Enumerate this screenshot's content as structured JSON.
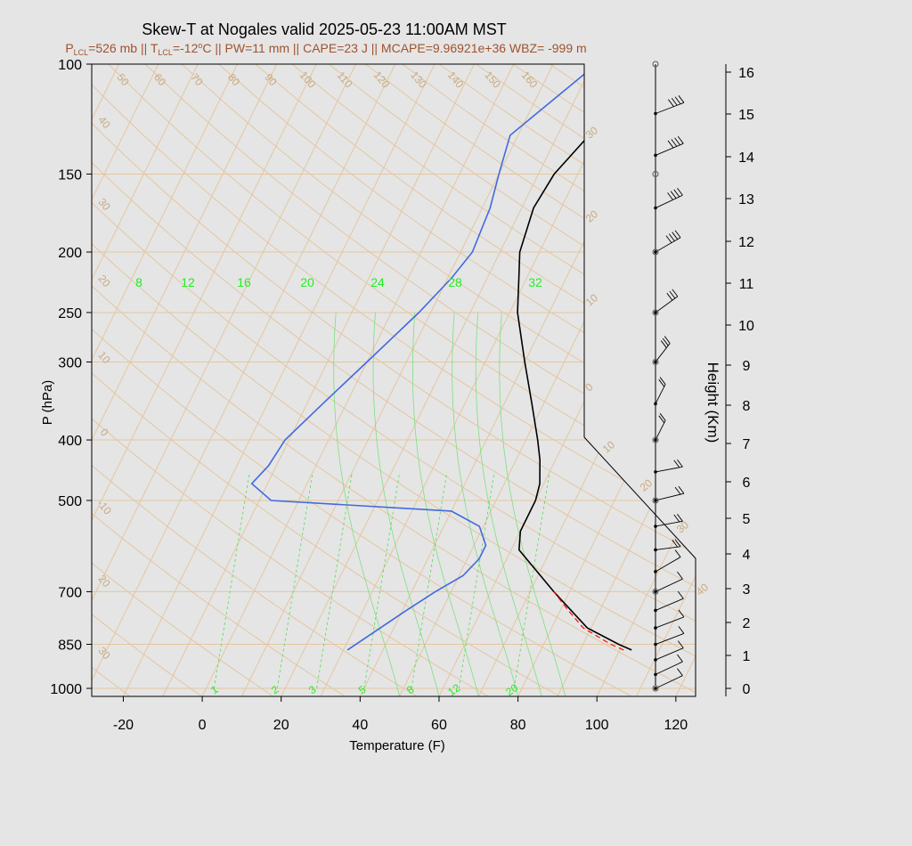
{
  "title": "Skew-T at Nogales valid 2025-05-23 11:00AM MST",
  "subtitle_parts": {
    "p_lcl": "526 mb",
    "t_lcl": "-12",
    "pw": "PW=11 mm",
    "cape": "CAPE=23 J",
    "mcape": "MCAPE=9.96921e+36",
    "wbz": "WBZ= -999 m"
  },
  "chart_data": {
    "type": "line",
    "xlabel": "Temperature (F)",
    "ylabel": "P (hPa)",
    "y2label": "Height (Km)",
    "xlim": [
      -28,
      125
    ],
    "ylim": [
      1030,
      100
    ],
    "x_ticks": [
      -20,
      0,
      20,
      40,
      60,
      80,
      100,
      120
    ],
    "y_ticks": [
      100,
      150,
      200,
      250,
      300,
      400,
      500,
      700,
      850,
      1000
    ],
    "height_ticks_km": [
      0,
      1,
      2,
      3,
      4,
      5,
      6,
      7,
      8,
      9,
      10,
      11,
      12,
      13,
      14,
      15,
      16
    ],
    "mixing_ratio_labels_top": [
      "8",
      "12",
      "16",
      "20",
      "24",
      "28",
      "32"
    ],
    "mixing_ratio_labels_bottom": [
      "1",
      "2",
      "3",
      "5",
      "8",
      "12",
      "20"
    ],
    "isotherm_labels_left": [
      "40",
      "30",
      "20",
      "10",
      "0",
      "-10",
      "20",
      "30"
    ],
    "isotherm_labels_top": [
      "50",
      "60",
      "70",
      "80",
      "90",
      "100",
      "110",
      "120",
      "130",
      "140",
      "150",
      "160"
    ],
    "isotherm_labels_right": [
      "30",
      "20",
      "10",
      "0",
      "10",
      "20",
      "30",
      "40"
    ],
    "series": [
      {
        "role": "temperature",
        "color": "#000000",
        "points": [
          {
            "p": 868,
            "t": 103
          },
          {
            "p": 850,
            "t": 99
          },
          {
            "p": 800,
            "t": 89
          },
          {
            "p": 700,
            "t": 76
          },
          {
            "p": 600,
            "t": 62
          },
          {
            "p": 560,
            "t": 60
          },
          {
            "p": 500,
            "t": 60
          },
          {
            "p": 470,
            "t": 59
          },
          {
            "p": 430,
            "t": 56
          },
          {
            "p": 400,
            "t": 53
          },
          {
            "p": 350,
            "t": 47
          },
          {
            "p": 300,
            "t": 40
          },
          {
            "p": 250,
            "t": 32
          },
          {
            "p": 220,
            "t": 28
          },
          {
            "p": 200,
            "t": 25
          },
          {
            "p": 170,
            "t": 23
          },
          {
            "p": 150,
            "t": 24
          },
          {
            "p": 130,
            "t": 28
          },
          {
            "p": 115,
            "t": 33
          },
          {
            "p": 100,
            "t": 40
          }
        ]
      },
      {
        "role": "dewpoint",
        "color": "#4169e1",
        "points": [
          {
            "p": 868,
            "t": 31
          },
          {
            "p": 750,
            "t": 41
          },
          {
            "p": 700,
            "t": 46
          },
          {
            "p": 660,
            "t": 51
          },
          {
            "p": 620,
            "t": 53
          },
          {
            "p": 590,
            "t": 53
          },
          {
            "p": 550,
            "t": 49
          },
          {
            "p": 520,
            "t": 40
          },
          {
            "p": 500,
            "t": -7
          },
          {
            "p": 470,
            "t": -14
          },
          {
            "p": 440,
            "t": -12
          },
          {
            "p": 400,
            "t": -11
          },
          {
            "p": 350,
            "t": -6
          },
          {
            "p": 300,
            "t": 0
          },
          {
            "p": 250,
            "t": 7
          },
          {
            "p": 220,
            "t": 11
          },
          {
            "p": 200,
            "t": 13
          },
          {
            "p": 170,
            "t": 12
          },
          {
            "p": 150,
            "t": 10
          },
          {
            "p": 130,
            "t": 8
          },
          {
            "p": 100,
            "t": 21
          }
        ]
      },
      {
        "role": "parcel",
        "color": "#ff0000",
        "dashed": true,
        "points": [
          {
            "p": 868,
            "t": 101
          },
          {
            "p": 850,
            "t": 97
          },
          {
            "p": 800,
            "t": 88
          },
          {
            "p": 750,
            "t": 82
          },
          {
            "p": 700,
            "t": 76
          }
        ]
      }
    ],
    "wind_barbs": [
      {
        "p": 1000,
        "dir": 250,
        "speed_kt": 5
      },
      {
        "p": 950,
        "dir": 250,
        "speed_kt": 10
      },
      {
        "p": 900,
        "dir": 255,
        "speed_kt": 10
      },
      {
        "p": 850,
        "dir": 260,
        "speed_kt": 10
      },
      {
        "p": 800,
        "dir": 260,
        "speed_kt": 10
      },
      {
        "p": 750,
        "dir": 255,
        "speed_kt": 10
      },
      {
        "p": 700,
        "dir": 250,
        "speed_kt": 10
      },
      {
        "p": 650,
        "dir": 240,
        "speed_kt": 10
      },
      {
        "p": 600,
        "dir": 300,
        "speed_kt": 15
      },
      {
        "p": 550,
        "dir": 290,
        "speed_kt": 15
      },
      {
        "p": 500,
        "dir": 280,
        "speed_kt": 20
      },
      {
        "p": 450,
        "dir": 290,
        "speed_kt": 15
      },
      {
        "p": 400,
        "dir": 200,
        "speed_kt": 15
      },
      {
        "p": 350,
        "dir": 200,
        "speed_kt": 20
      },
      {
        "p": 300,
        "dir": 210,
        "speed_kt": 25
      },
      {
        "p": 250,
        "dir": 230,
        "speed_kt": 30
      },
      {
        "p": 200,
        "dir": 240,
        "speed_kt": 35
      },
      {
        "p": 170,
        "dir": 250,
        "speed_kt": 35
      },
      {
        "p": 140,
        "dir": 255,
        "speed_kt": 40
      },
      {
        "p": 120,
        "dir": 260,
        "speed_kt": 40
      }
    ]
  }
}
